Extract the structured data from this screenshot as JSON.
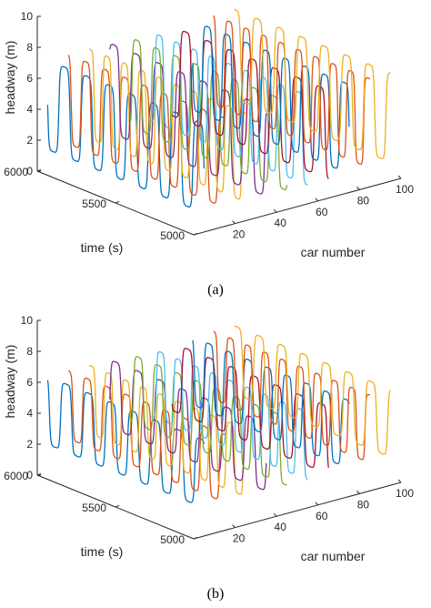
{
  "colors": [
    "#0072bd",
    "#d95319",
    "#edb120",
    "#7e2f8e",
    "#77ac30",
    "#4dbeee",
    "#a2142f"
  ],
  "chart_data": [
    {
      "type": "line",
      "caption": "(a)",
      "zlabel": "headway (m)",
      "ylabel": "time (s)",
      "xlabel": "car number",
      "zlim": [
        0,
        10
      ],
      "ylim": [
        5000,
        6000
      ],
      "xlim": [
        0,
        100
      ],
      "z_ticks": [
        "0",
        "2",
        "4",
        "6",
        "8",
        "10"
      ],
      "y_ticks": [
        "5000",
        "5500",
        "6000"
      ],
      "x_ticks": [
        "20",
        "40",
        "60",
        "80",
        "100"
      ],
      "series_description": "Headway vs time for many cars; oscillating stop-and-go waves between about 1 m and 7.5 m",
      "series_cars": [
        5,
        15,
        25,
        35,
        45,
        55,
        65,
        75,
        85,
        95
      ],
      "amplitude": {
        "low": 1.2,
        "high": 7.0
      }
    },
    {
      "type": "line",
      "caption": "(b)",
      "zlabel": "headway (m)",
      "ylabel": "time (s)",
      "xlabel": "car number",
      "zlim": [
        0,
        10
      ],
      "ylim": [
        5000,
        6000
      ],
      "xlim": [
        0,
        100
      ],
      "z_ticks": [
        "0",
        "2",
        "4",
        "6",
        "8",
        "10"
      ],
      "y_ticks": [
        "5000",
        "5500",
        "6000"
      ],
      "x_ticks": [
        "20",
        "40",
        "60",
        "80",
        "100"
      ],
      "series_description": "Headway vs time for many cars; smaller oscillations between about 1.5 m and 6.5 m",
      "series_cars": [
        5,
        15,
        25,
        35,
        45,
        55,
        65,
        75,
        85,
        95
      ],
      "amplitude": {
        "low": 1.8,
        "high": 6.2
      }
    }
  ]
}
